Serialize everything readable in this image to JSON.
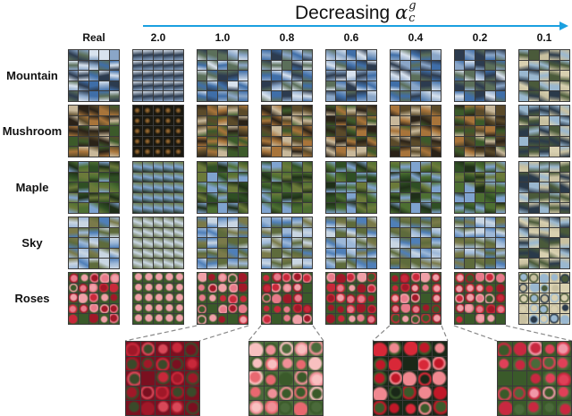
{
  "figure": {
    "title_text": "Decreasing",
    "title_symbol": "α",
    "title_superscript": "g",
    "title_subscript": "c",
    "arrow_color": "#1aa0e0",
    "columns": [
      {
        "label": "Real"
      },
      {
        "label": "2.0"
      },
      {
        "label": "1.0"
      },
      {
        "label": "0.8"
      },
      {
        "label": "0.6"
      },
      {
        "label": "0.4"
      },
      {
        "label": "0.2"
      },
      {
        "label": "0.1"
      }
    ],
    "rows": [
      {
        "label": "Mountain",
        "palette": [
          "#3f6ea8",
          "#8aa6c8",
          "#5b6f5a",
          "#d8e2ee",
          "#2c3b4f"
        ]
      },
      {
        "label": "Mushroom",
        "palette": [
          "#5a4a2a",
          "#c8b89a",
          "#3c5a2a",
          "#a8743a",
          "#2a2218"
        ]
      },
      {
        "label": "Maple",
        "palette": [
          "#2f4f24",
          "#4d6f32",
          "#7fa3cf",
          "#6b7a3a",
          "#1f2f18"
        ]
      },
      {
        "label": "Sky",
        "palette": [
          "#9db8d8",
          "#7a7a4a",
          "#c9d6e3",
          "#5e6b3c",
          "#4f7fb8"
        ]
      },
      {
        "label": "Roses",
        "palette": [
          "#c8283a",
          "#e87a8a",
          "#3a5a2a",
          "#a01828",
          "#f0a0a8"
        ]
      }
    ],
    "zoomed_row": "Roses",
    "zoomed_columns": [
      "1.0",
      "0.8",
      "0.4",
      "0.2"
    ]
  }
}
